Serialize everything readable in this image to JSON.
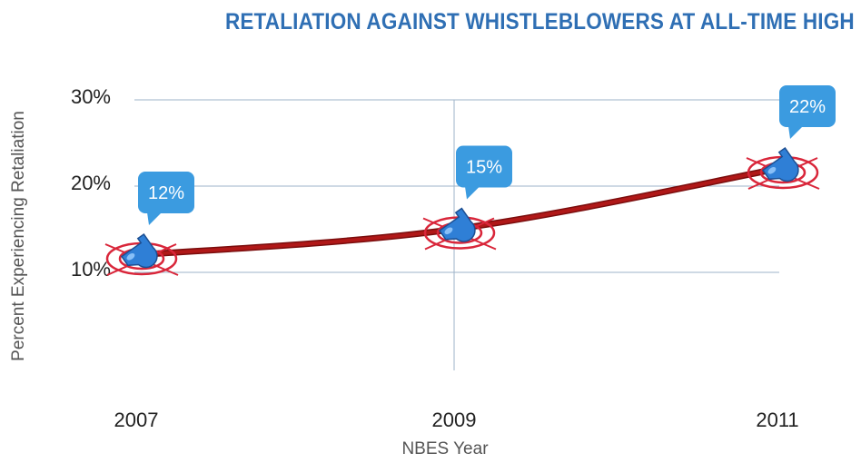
{
  "colors": {
    "title": "#2f6fb4",
    "grid": "#9db3c8",
    "line": "#b01818",
    "bubble": "#3b9be0",
    "target": "#d9263a",
    "whistle": "#2f7fd6"
  },
  "icons": {
    "marker": "whistle-on-target-icon"
  },
  "chart_data": {
    "type": "line",
    "title": "RETALIATION AGAINST WHISTLEBLOWERS AT ALL-TIME HIGH",
    "xlabel": "NBES Year",
    "ylabel": "Percent Experiencing Retaliation",
    "categories": [
      "2007",
      "2009",
      "2011"
    ],
    "values": [
      12,
      15,
      22
    ],
    "data_labels": [
      "12%",
      "15%",
      "22%"
    ],
    "y_ticks": [
      10,
      20,
      30
    ],
    "y_tick_labels": [
      "10%",
      "20%",
      "30%"
    ],
    "ylim": [
      0,
      30
    ],
    "grid": true,
    "legend": "none"
  }
}
